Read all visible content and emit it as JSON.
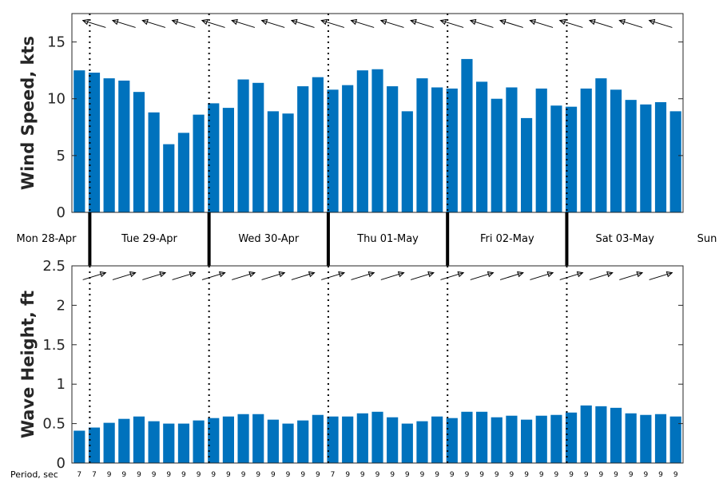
{
  "chart_data": [
    {
      "type": "bar",
      "ylabel": "Wind Speed, kts",
      "ylim": [
        0,
        17.5
      ],
      "yticks": [
        "0",
        "5",
        "10",
        "15"
      ],
      "color": "#0072BD",
      "values": [
        12.5,
        12.3,
        11.8,
        11.6,
        10.6,
        8.8,
        6.0,
        7.0,
        8.6,
        9.6,
        9.2,
        11.7,
        11.4,
        8.9,
        8.7,
        11.1,
        11.9,
        10.8,
        11.2,
        12.5,
        12.6,
        11.1,
        8.9,
        11.8,
        11.0,
        10.9,
        13.5,
        11.5,
        10.0,
        11.0,
        8.3,
        10.9,
        9.4,
        9.3,
        10.9,
        11.8,
        10.8,
        9.9,
        9.5,
        9.7,
        8.9
      ],
      "direction_arrows": "wind direction arrows along top of panel, pointing mostly west-northwest"
    },
    {
      "type": "bar",
      "ylabel": "Wave Height, ft",
      "ylim": [
        0,
        2.5
      ],
      "yticks": [
        "0",
        "0.5",
        "1",
        "1.5",
        "2",
        "2.5"
      ],
      "color": "#0072BD",
      "values": [
        0.41,
        0.45,
        0.51,
        0.56,
        0.59,
        0.53,
        0.5,
        0.5,
        0.54,
        0.57,
        0.59,
        0.62,
        0.62,
        0.55,
        0.5,
        0.54,
        0.61,
        0.59,
        0.59,
        0.63,
        0.65,
        0.58,
        0.5,
        0.53,
        0.59,
        0.57,
        0.65,
        0.65,
        0.58,
        0.6,
        0.55,
        0.6,
        0.61,
        0.64,
        0.73,
        0.72,
        0.7,
        0.63,
        0.61,
        0.62,
        0.59
      ],
      "periods_title": "Period, sec",
      "periods": [
        "7",
        "7",
        "9",
        "9",
        "9",
        "9",
        "9",
        "9",
        "9",
        "9",
        "9",
        "9",
        "9",
        "9",
        "9",
        "9",
        "9",
        "7",
        "9",
        "9",
        "9",
        "9",
        "9",
        "9",
        "9",
        "9",
        "9",
        "9",
        "9",
        "9",
        "9",
        "9",
        "9",
        "9",
        "9",
        "9",
        "9",
        "9",
        "9",
        "9",
        "9"
      ],
      "direction_arrows": "wave direction arrows along top of panel, pointing east-northeast"
    }
  ],
  "days": [
    "Mon 28-Apr",
    "Tue 29-Apr",
    "Wed 30-Apr",
    "Thu 01-May",
    "Fri 02-May",
    "Sat 03-May",
    "Sun"
  ]
}
